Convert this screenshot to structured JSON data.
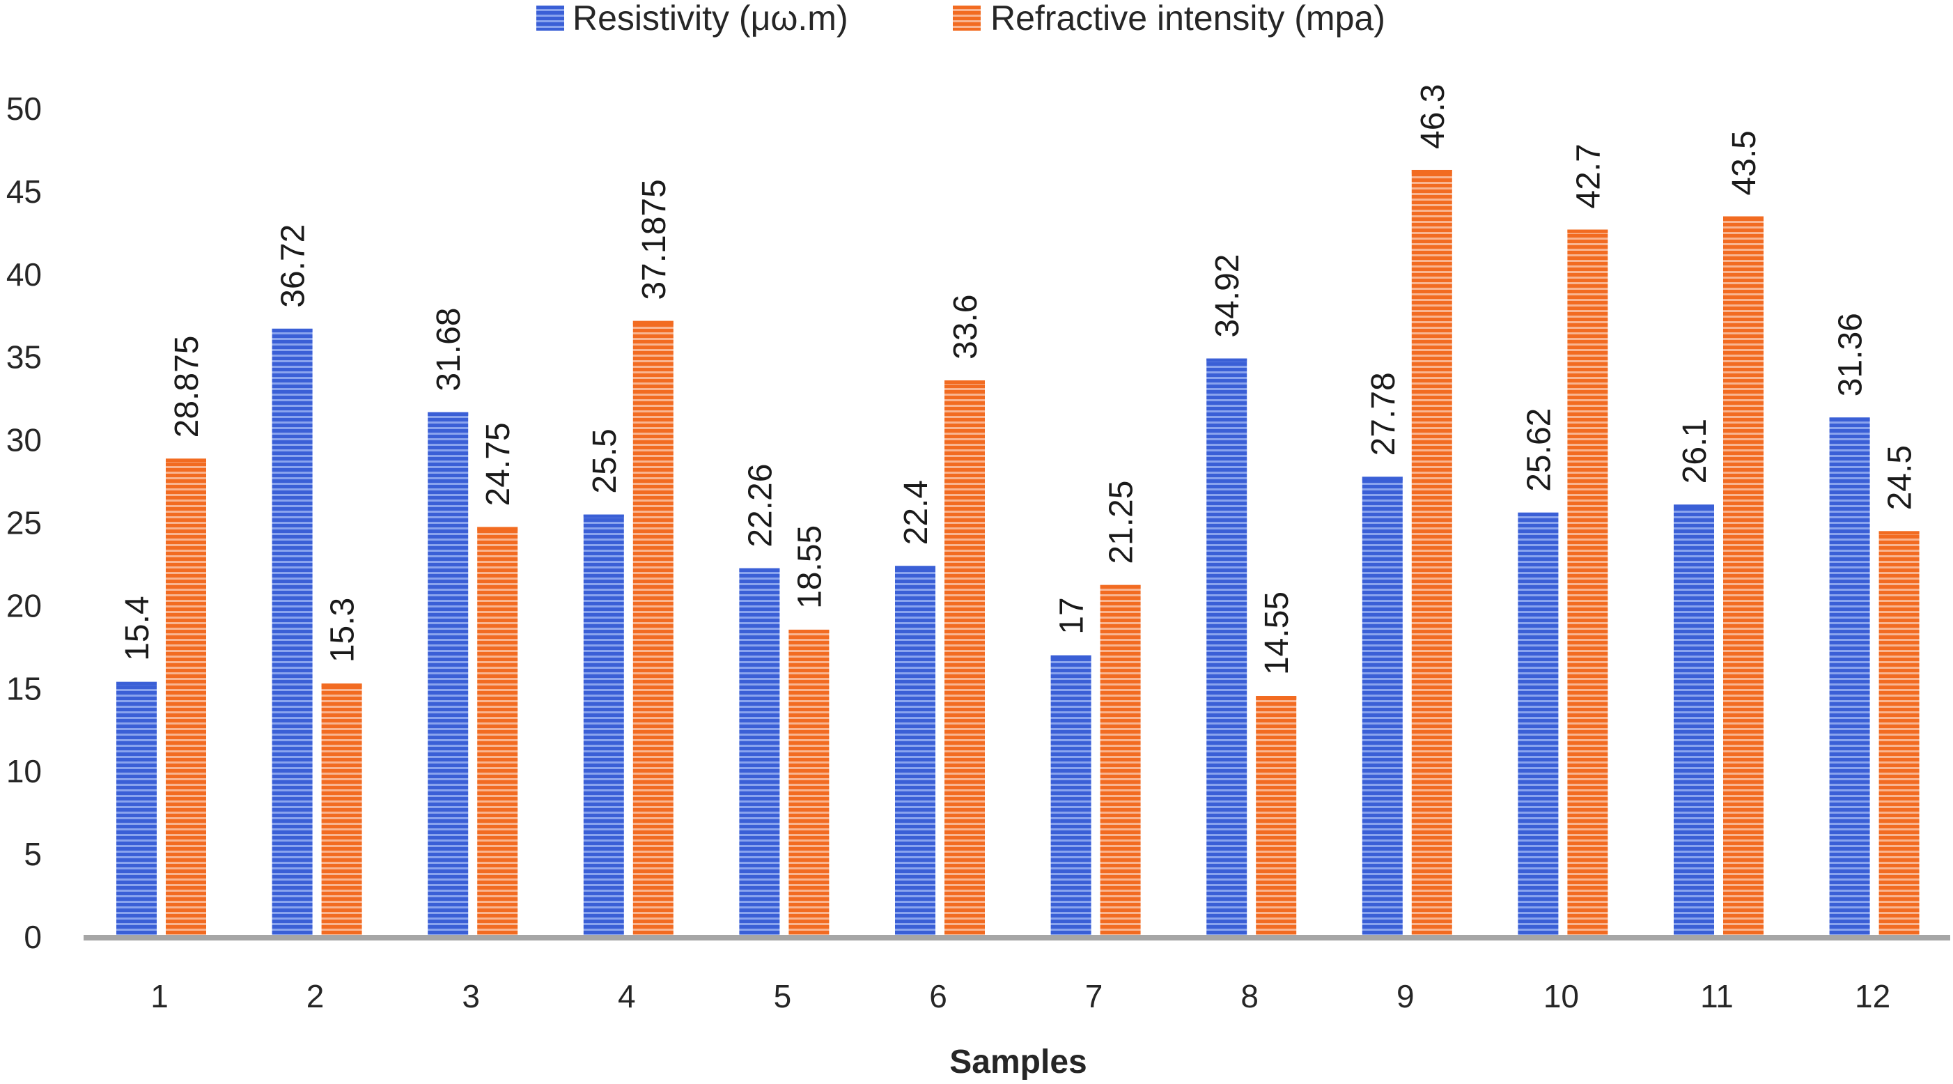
{
  "chart_data": {
    "type": "bar",
    "title": "",
    "xlabel": "Samples",
    "ylabel": "",
    "ylim": [
      0,
      50
    ],
    "yticks": [
      0,
      5,
      10,
      15,
      20,
      25,
      30,
      35,
      40,
      45,
      50
    ],
    "grid": false,
    "legend_position": "top-center",
    "categories": [
      "1",
      "2",
      "3",
      "4",
      "5",
      "6",
      "7",
      "8",
      "9",
      "10",
      "11",
      "12"
    ],
    "series": [
      {
        "name": "Resistivity (μω.m)",
        "color": "#3a5fd6",
        "values": [
          15.4,
          36.72,
          31.68,
          25.5,
          22.26,
          22.4,
          17,
          34.92,
          27.78,
          25.62,
          26.1,
          31.36
        ],
        "labels": [
          "15.4",
          "36.72",
          "31.68",
          "25.5",
          "22.26",
          "22.4",
          "17",
          "34.92",
          "27.78",
          "25.62",
          "26.1",
          "31.36"
        ]
      },
      {
        "name": "Refractive intensity (mpa)",
        "color": "#f26b21",
        "values": [
          28.875,
          15.3,
          24.75,
          37.1875,
          18.55,
          33.6,
          21.25,
          14.55,
          46.3,
          42.7,
          43.5,
          24.5
        ],
        "labels": [
          "28.875",
          "15.3",
          "24.75",
          "37.1875",
          "18.55",
          "33.6",
          "21.25",
          "14.55",
          "46.3",
          "42.7",
          "43.5",
          "24.5"
        ]
      }
    ]
  }
}
